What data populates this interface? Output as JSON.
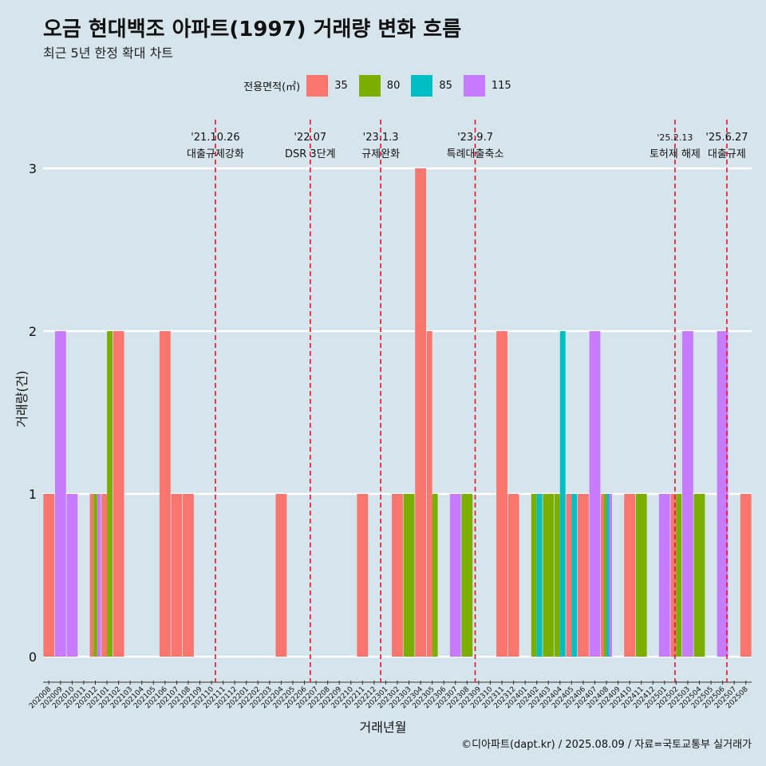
{
  "chart_data": {
    "type": "bar",
    "title": "오금 현대백조 아파트(1997) 거래량 변화 흐름",
    "subtitle": "최근 5년 한정 확대 차트",
    "xlabel": "거래년월",
    "ylabel": "거래량(건)",
    "caption": "©디아파트(dapt.kr) / 2025.08.09 / 자료=국토교통부 실거래가",
    "legend_title": "전용면적(㎡)",
    "legend_position": "top",
    "ylim": [
      0,
      3
    ],
    "yticks": [
      "0",
      "1",
      "2",
      "3"
    ],
    "categories": [
      "202008",
      "202009",
      "202010",
      "202011",
      "202012",
      "202101",
      "202102",
      "202103",
      "202104",
      "202105",
      "202106",
      "202107",
      "202108",
      "202109",
      "202110",
      "202111",
      "202112",
      "202201",
      "202202",
      "202203",
      "202204",
      "202205",
      "202206",
      "202207",
      "202208",
      "202209",
      "202210",
      "202211",
      "202212",
      "202301",
      "202302",
      "202303",
      "202304",
      "202305",
      "202306",
      "202307",
      "202308",
      "202309",
      "202310",
      "202311",
      "202312",
      "202401",
      "202402",
      "202403",
      "202404",
      "202405",
      "202406",
      "202407",
      "202408",
      "202409",
      "202410",
      "202411",
      "202412",
      "202501",
      "202502",
      "202503",
      "202504",
      "202505",
      "202506",
      "202507",
      "202508"
    ],
    "series": [
      {
        "name": "35",
        "color": "#f8766d",
        "values": [
          1,
          0,
          0,
          0,
          1,
          1,
          2,
          0,
          0,
          0,
          2,
          1,
          1,
          0,
          0,
          0,
          0,
          0,
          0,
          0,
          1,
          0,
          0,
          0,
          0,
          0,
          0,
          1,
          0,
          0,
          1,
          0,
          3,
          2,
          0,
          0,
          0,
          0,
          0,
          2,
          1,
          0,
          0,
          0,
          0,
          1,
          1,
          0,
          1,
          0,
          1,
          0,
          0,
          0,
          1,
          0,
          0,
          0,
          0,
          0,
          1
        ]
      },
      {
        "name": "80",
        "color": "#7cae00",
        "values": [
          0,
          0,
          0,
          0,
          1,
          2,
          0,
          0,
          0,
          0,
          0,
          0,
          0,
          0,
          0,
          0,
          0,
          0,
          0,
          0,
          0,
          0,
          0,
          0,
          0,
          0,
          0,
          0,
          0,
          0,
          0,
          1,
          0,
          1,
          0,
          0,
          1,
          0,
          0,
          0,
          0,
          0,
          1,
          1,
          1,
          0,
          0,
          0,
          1,
          0,
          0,
          1,
          0,
          0,
          1,
          0,
          1,
          0,
          0,
          0,
          0
        ]
      },
      {
        "name": "85",
        "color": "#00bfc4",
        "values": [
          0,
          0,
          0,
          0,
          0,
          0,
          0,
          0,
          0,
          0,
          0,
          0,
          0,
          0,
          0,
          0,
          0,
          0,
          0,
          0,
          0,
          0,
          0,
          0,
          0,
          0,
          0,
          0,
          0,
          0,
          0,
          0,
          0,
          0,
          0,
          0,
          0,
          0,
          0,
          0,
          0,
          0,
          1,
          0,
          2,
          1,
          0,
          0,
          1,
          0,
          0,
          0,
          0,
          0,
          0,
          0,
          0,
          0,
          0,
          0,
          0
        ]
      },
      {
        "name": "115",
        "color": "#c77cff",
        "values": [
          0,
          2,
          1,
          0,
          1,
          0,
          0,
          0,
          0,
          0,
          0,
          0,
          0,
          0,
          0,
          0,
          0,
          0,
          0,
          0,
          0,
          0,
          0,
          0,
          0,
          0,
          0,
          0,
          0,
          0,
          0,
          0,
          0,
          0,
          0,
          1,
          0,
          0,
          0,
          0,
          0,
          0,
          0,
          0,
          0,
          0,
          0,
          2,
          1,
          0,
          0,
          0,
          0,
          1,
          0,
          2,
          0,
          0,
          2,
          0,
          0
        ]
      }
    ],
    "annotations": [
      {
        "date": "'21.10.26",
        "label": "대출규제강화",
        "month": "202110",
        "day": 26
      },
      {
        "date": "'22.07",
        "label": "DSR 3단계",
        "month": "202207",
        "day": 1
      },
      {
        "date": "'23.1.3",
        "label": "규제완화",
        "month": "202301",
        "day": 3
      },
      {
        "date": "'23.9.7",
        "label": "특례대출축소",
        "month": "202309",
        "day": 7
      },
      {
        "date": "'25.2.13",
        "label": "토허제 해제",
        "month": "202502",
        "day": 13
      },
      {
        "date": "'25.6.27",
        "label": "대출규제",
        "month": "202506",
        "day": 27
      }
    ]
  }
}
